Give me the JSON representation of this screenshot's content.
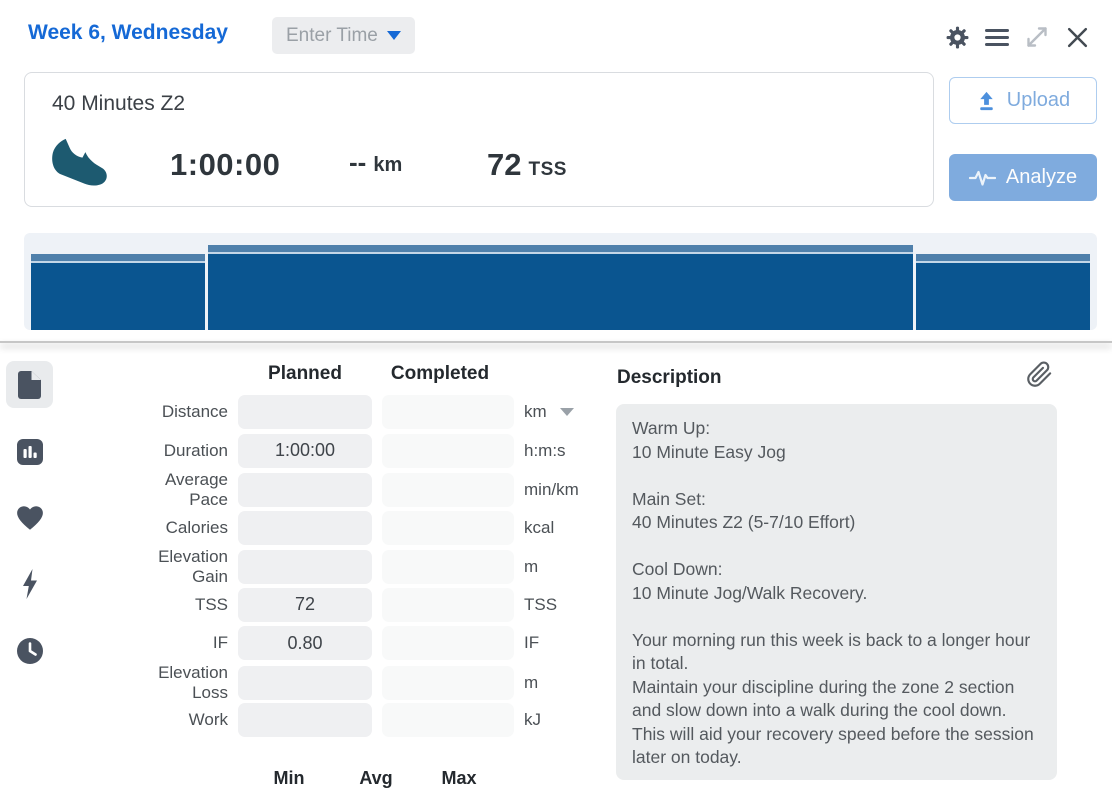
{
  "header": {
    "title": "Week 6, Wednesday",
    "enter_time_label": "Enter Time"
  },
  "summary": {
    "title": "40 Minutes Z2",
    "sport": "run",
    "duration": "1:00:00",
    "distance_value": "--",
    "distance_unit": "km",
    "tss_value": "72",
    "tss_unit": "TSS"
  },
  "actions": {
    "upload_label": "Upload",
    "analyze_label": "Analyze"
  },
  "chart_data": {
    "type": "bar",
    "title": "Planned workout structure preview",
    "total_minutes": 60,
    "segments": [
      {
        "label": "Warm Up",
        "minutes": 10,
        "intensity": 0.9
      },
      {
        "label": "Main Set",
        "minutes": 40,
        "intensity": 1.0
      },
      {
        "label": "Cool Down",
        "minutes": 10,
        "intensity": 0.9
      }
    ],
    "legend_position": "none",
    "grid": false
  },
  "metrics": {
    "planned_header": "Planned",
    "completed_header": "Completed",
    "rows": [
      {
        "label": "Distance",
        "planned": "",
        "completed": "",
        "unit": "km",
        "unit_dropdown": true
      },
      {
        "label": "Duration",
        "planned": "1:00:00",
        "completed": "",
        "unit": "h:m:s",
        "unit_dropdown": false
      },
      {
        "label": "Average Pace",
        "planned": "",
        "completed": "",
        "unit": "min/km",
        "unit_dropdown": false
      },
      {
        "label": "Calories",
        "planned": "",
        "completed": "",
        "unit": "kcal",
        "unit_dropdown": false
      },
      {
        "label": "Elevation Gain",
        "planned": "",
        "completed": "",
        "unit": "m",
        "unit_dropdown": false
      },
      {
        "label": "TSS",
        "planned": "72",
        "completed": "",
        "unit": "TSS",
        "unit_dropdown": false
      },
      {
        "label": "IF",
        "planned": "0.80",
        "completed": "",
        "unit": "IF",
        "unit_dropdown": false
      },
      {
        "label": "Elevation Loss",
        "planned": "",
        "completed": "",
        "unit": "m",
        "unit_dropdown": false
      },
      {
        "label": "Work",
        "planned": "",
        "completed": "",
        "unit": "kJ",
        "unit_dropdown": false
      }
    ],
    "footer": [
      "Min",
      "Avg",
      "Max"
    ]
  },
  "description": {
    "header": "Description",
    "lines": [
      "Warm Up:",
      "10 Minute Easy Jog",
      "",
      "Main Set:",
      "40 Minutes Z2 (5-7/10 Effort)",
      "",
      "Cool Down:",
      "10 Minute Jog/Walk Recovery.",
      "",
      "Your morning run this week is back to a longer hour in total.",
      "Maintain your discipline during the zone 2 section and slow down into a walk during the cool down. This will aid your recovery speed before the session later on today."
    ]
  },
  "icons": {
    "topbar": [
      "gear-icon",
      "menu-icon",
      "expand-icon",
      "close-icon"
    ],
    "sidebar": [
      "document-icon",
      "bar-chart-icon",
      "heart-icon",
      "bolt-icon",
      "clock-icon"
    ],
    "other": [
      "run-shoe-icon",
      "upload-icon",
      "waveform-icon",
      "paperclip-icon",
      "dropdown-caret-icon"
    ]
  },
  "colors": {
    "accent_blue": "#1569d6",
    "analyze_bg": "#7fabde",
    "upload_border": "#aecdef",
    "bar_body": "#0a5590",
    "bar_band": "#4f80ab",
    "bar_band_line": "#c3d6e7",
    "chart_panel_bg": "#eef2f7",
    "shoe_teal": "#1d5a70",
    "icon_dark": "#4a5361",
    "icon_light": "#b9bec5",
    "input_planned_bg": "#eff0f2",
    "input_completed_bg": "#f8f9f9",
    "desc_box_bg": "#ebedee"
  }
}
